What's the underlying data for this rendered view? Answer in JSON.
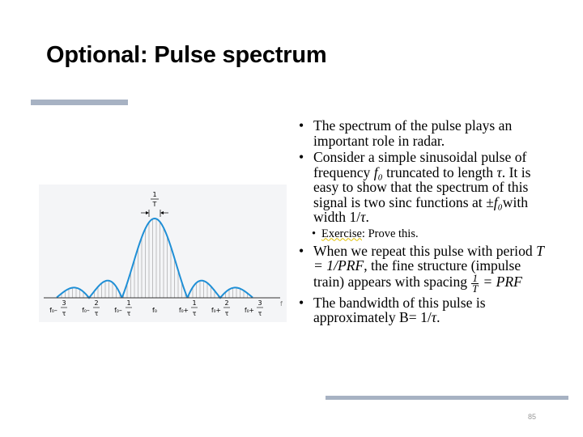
{
  "title": "Optional: Pulse spectrum",
  "page_number": "85",
  "figure": {
    "width_label_num": "1",
    "width_label_den": "T",
    "f0_symbol": "f₀",
    "tau_symbol": "τ",
    "axis_letter": "f",
    "minus_sign": "–",
    "plus_sign": "+",
    "tick_labels": [
      {
        "num": "3",
        "sign": "-"
      },
      {
        "num": "2",
        "sign": "-"
      },
      {
        "num": "1",
        "sign": "-"
      },
      {
        "num": "",
        "sign": ""
      },
      {
        "num": "1",
        "sign": "+"
      },
      {
        "num": "2",
        "sign": "+"
      },
      {
        "num": "3",
        "sign": "+"
      }
    ],
    "curve_color": "#1f8fd6",
    "line_color": "#9a9a9a"
  },
  "bullets": {
    "b1": "The spectrum of the pulse plays an important role in radar.",
    "b2_part1": "Consider a simple sinusoidal pulse of frequency ",
    "b2_f0": "f₀",
    "b2_part2": " truncated to length ",
    "b2_tau": "τ",
    "b2_part3": ". It is easy to show that the spectrum of this signal is two sinc functions at ",
    "b2_pm_f0": "±f₀",
    "b2_part4": "with width 1/",
    "b2_tau2": "τ",
    "b2_part5": ".",
    "sub_exercise": "Exercise",
    "sub_rest": ": Prove this.",
    "b3_part1": "When we repeat this pulse with period ",
    "b3_eq": "T = 1/PRF",
    "b3_part2": ", the fine structure (impulse train) appears with spacing ",
    "b3_frac_num": "1",
    "b3_frac_den": "T",
    "b3_eq2": " = PRF",
    "b4_part1": "The bandwidth of this pulse is approximately B= 1/",
    "b4_tau": "τ",
    "b4_part2": "."
  }
}
